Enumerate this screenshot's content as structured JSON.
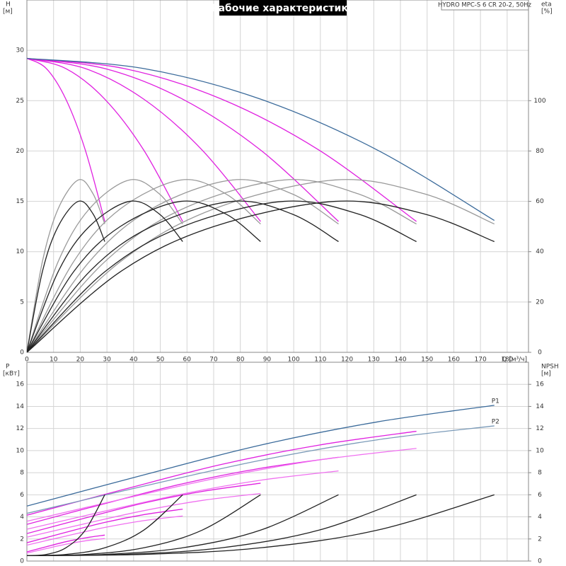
{
  "chart_data": [
    {
      "type": "line",
      "title": "Рабочие характеристики",
      "annotation": "HYDRO MPC-S 6 CR 20-2, 50Hz",
      "x_label": "Q [м³/ч]",
      "y_label": "H",
      "y_unit": "[м]",
      "y2_label": "eta",
      "y2_unit": "[%]",
      "xlim": [
        0,
        188
      ],
      "xticks": [
        0,
        10,
        20,
        30,
        40,
        50,
        60,
        70,
        80,
        90,
        100,
        110,
        120,
        130,
        140,
        150,
        160,
        170,
        180
      ],
      "ylim": [
        0,
        35
      ],
      "yticks": [
        0,
        5,
        10,
        15,
        20,
        25,
        30
      ],
      "y2lim": [
        0,
        140
      ],
      "y2ticks": [
        0,
        20,
        40,
        60,
        80,
        100
      ],
      "grid": true,
      "series": [
        {
          "color": "#e020e0",
          "x": [
            0,
            7.3,
            14.6,
            21.9,
            29.2
          ],
          "values": [
            29.2,
            28.19,
            25.15,
            20.09,
            13.0
          ]
        },
        {
          "color": "#e020e0",
          "x": [
            0,
            14.6,
            29.2,
            43.8,
            58.4
          ],
          "values": [
            29.2,
            28.19,
            25.15,
            20.09,
            13.0
          ]
        },
        {
          "color": "#e020e0",
          "x": [
            0,
            21.9,
            43.8,
            65.7,
            87.6
          ],
          "values": [
            29.2,
            28.19,
            25.15,
            20.09,
            13.0
          ]
        },
        {
          "color": "#e020e0",
          "x": [
            0,
            29.2,
            58.4,
            87.6,
            116.8
          ],
          "values": [
            29.2,
            28.19,
            25.15,
            20.09,
            13.0
          ]
        },
        {
          "color": "#e020e0",
          "x": [
            0,
            36.5,
            73,
            109.5,
            146
          ],
          "values": [
            29.2,
            28.19,
            25.15,
            20.09,
            13.0
          ]
        },
        {
          "color": "#3a6a9a",
          "x": [
            0,
            43.8,
            87.6,
            131.4,
            175.2
          ],
          "values": [
            29.2,
            28.19,
            25.15,
            20.09,
            13.1
          ]
        },
        {
          "color": "#999999",
          "axis": "y2",
          "x": [
            0,
            5.8,
            11.7,
            19.3,
            24.8,
            29.2
          ],
          "values": [
            0,
            36,
            57,
            68.5,
            63,
            51
          ]
        },
        {
          "color": "#999999",
          "axis": "y2",
          "x": [
            0,
            11.7,
            23.4,
            38.5,
            49.6,
            58.4
          ],
          "values": [
            0,
            36,
            57,
            68.5,
            63,
            51
          ]
        },
        {
          "color": "#999999",
          "axis": "y2",
          "x": [
            0,
            17.5,
            35,
            57.8,
            74.5,
            87.6
          ],
          "values": [
            0,
            36,
            57,
            68.5,
            63,
            51
          ]
        },
        {
          "color": "#999999",
          "axis": "y2",
          "x": [
            0,
            23.4,
            46.7,
            77.1,
            99.3,
            116.8
          ],
          "values": [
            0,
            36,
            57,
            68.5,
            63,
            51
          ]
        },
        {
          "color": "#999999",
          "axis": "y2",
          "x": [
            0,
            29.2,
            58.4,
            96.4,
            124.1,
            146
          ],
          "values": [
            0,
            36,
            57,
            68.5,
            63,
            51
          ]
        },
        {
          "color": "#999999",
          "axis": "y2",
          "x": [
            0,
            35,
            70.1,
            115.6,
            148.9,
            175.2
          ],
          "values": [
            0,
            36,
            57,
            68.5,
            63,
            51
          ]
        },
        {
          "color": "#222222",
          "axis": "y2",
          "x": [
            0,
            5.8,
            11.7,
            19.3,
            24.8,
            29.2
          ],
          "values": [
            0,
            32,
            50,
            60,
            55,
            44
          ]
        },
        {
          "color": "#222222",
          "axis": "y2",
          "x": [
            0,
            11.7,
            23.4,
            38.5,
            49.6,
            58.4
          ],
          "values": [
            0,
            32,
            50,
            60,
            55,
            44
          ]
        },
        {
          "color": "#222222",
          "axis": "y2",
          "x": [
            0,
            17.5,
            35,
            57.8,
            74.5,
            87.6
          ],
          "values": [
            0,
            32,
            50,
            60,
            55,
            44
          ]
        },
        {
          "color": "#222222",
          "axis": "y2",
          "x": [
            0,
            23.4,
            46.7,
            77.1,
            99.3,
            116.8
          ],
          "values": [
            0,
            32,
            50,
            60,
            55,
            44
          ]
        },
        {
          "color": "#222222",
          "axis": "y2",
          "x": [
            0,
            29.2,
            58.4,
            96.4,
            124.1,
            146
          ],
          "values": [
            0,
            32,
            50,
            60,
            55,
            44
          ]
        },
        {
          "color": "#222222",
          "axis": "y2",
          "x": [
            0,
            35,
            70.1,
            115.6,
            148.9,
            175.2
          ],
          "values": [
            0,
            32,
            50,
            60,
            55,
            44
          ]
        }
      ]
    },
    {
      "type": "line",
      "y_label": "P",
      "y_unit": "[кВт]",
      "y2_label": "NPSH",
      "y2_unit": "[м]",
      "xlim": [
        0,
        188
      ],
      "xticks": [
        0,
        10,
        20,
        30,
        40,
        50,
        60,
        70,
        80,
        90,
        100,
        110,
        120,
        130,
        140,
        150,
        160,
        170,
        180
      ],
      "ylim": [
        0,
        18
      ],
      "yticks": [
        0,
        2,
        4,
        6,
        8,
        10,
        12,
        14,
        16
      ],
      "y2lim": [
        0,
        18
      ],
      "y2ticks": [
        0,
        2,
        4,
        6,
        8,
        10,
        12,
        14,
        16
      ],
      "grid": true,
      "series": [
        {
          "color": "#e020e0",
          "x": [
            0,
            7.3,
            14.6,
            21.9,
            29.2
          ],
          "values": [
            0.83,
            1.3,
            1.75,
            2.1,
            2.35
          ]
        },
        {
          "color": "#e020e0",
          "x": [
            0,
            14.6,
            29.2,
            43.8,
            58.4
          ],
          "values": [
            1.66,
            2.6,
            3.5,
            4.2,
            4.7
          ]
        },
        {
          "color": "#e020e0",
          "x": [
            0,
            21.9,
            43.8,
            65.7,
            87.6
          ],
          "values": [
            2.49,
            3.9,
            5.25,
            6.3,
            7.05
          ]
        },
        {
          "color": "#e020e0",
          "x": [
            0,
            29.2,
            58.4,
            87.6,
            116.8
          ],
          "values": [
            3.32,
            5.2,
            7.0,
            8.4,
            9.4
          ]
        },
        {
          "color": "#e020e0",
          "x": [
            0,
            36.5,
            73,
            109.5,
            146
          ],
          "values": [
            4.15,
            6.5,
            8.75,
            10.5,
            11.75
          ]
        },
        {
          "name": "P1",
          "color": "#3a6a9a",
          "x": [
            0,
            43.8,
            87.6,
            131.4,
            175.2
          ],
          "values": [
            4.98,
            7.8,
            10.5,
            12.6,
            14.1
          ]
        },
        {
          "color": "#f070f0",
          "x": [
            0,
            7.3,
            14.6,
            21.9,
            29.2
          ],
          "values": [
            0.72,
            1.13,
            1.52,
            1.83,
            2.04
          ]
        },
        {
          "color": "#f070f0",
          "x": [
            0,
            14.6,
            29.2,
            43.8,
            58.4
          ],
          "values": [
            1.44,
            2.26,
            3.04,
            3.66,
            4.08
          ]
        },
        {
          "color": "#f070f0",
          "x": [
            0,
            21.9,
            43.8,
            65.7,
            87.6
          ],
          "values": [
            2.16,
            3.39,
            4.56,
            5.49,
            6.12
          ]
        },
        {
          "color": "#f070f0",
          "x": [
            0,
            29.2,
            58.4,
            87.6,
            116.8
          ],
          "values": [
            2.88,
            4.52,
            6.08,
            7.32,
            8.16
          ]
        },
        {
          "color": "#f070f0",
          "x": [
            0,
            36.5,
            73,
            109.5,
            146
          ],
          "values": [
            3.6,
            5.65,
            7.6,
            9.15,
            10.2
          ]
        },
        {
          "name": "P2",
          "color": "#7a9ab8",
          "x": [
            0,
            43.8,
            87.6,
            131.4,
            175.2
          ],
          "values": [
            4.32,
            6.78,
            9.12,
            10.98,
            12.24
          ]
        },
        {
          "color": "#222222",
          "axis": "y2",
          "x": [
            0,
            7.3,
            14.6,
            21.9,
            29.2
          ],
          "values": [
            0.5,
            0.6,
            1.2,
            2.8,
            6.0
          ]
        },
        {
          "color": "#222222",
          "axis": "y2",
          "x": [
            0,
            14.6,
            29.2,
            43.8,
            58.4
          ],
          "values": [
            0.5,
            0.6,
            1.2,
            2.8,
            6.0
          ]
        },
        {
          "color": "#222222",
          "axis": "y2",
          "x": [
            0,
            21.9,
            43.8,
            65.7,
            87.6
          ],
          "values": [
            0.5,
            0.6,
            1.2,
            2.8,
            6.0
          ]
        },
        {
          "color": "#222222",
          "axis": "y2",
          "x": [
            0,
            29.2,
            58.4,
            87.6,
            116.8
          ],
          "values": [
            0.5,
            0.6,
            1.2,
            2.8,
            6.0
          ]
        },
        {
          "color": "#222222",
          "axis": "y2",
          "x": [
            0,
            36.5,
            73,
            109.5,
            146
          ],
          "values": [
            0.5,
            0.6,
            1.2,
            2.8,
            6.0
          ]
        },
        {
          "color": "#222222",
          "axis": "y2",
          "x": [
            0,
            43.8,
            87.6,
            131.4,
            175.2
          ],
          "values": [
            0.5,
            0.6,
            1.2,
            2.8,
            6.0
          ]
        }
      ]
    }
  ]
}
